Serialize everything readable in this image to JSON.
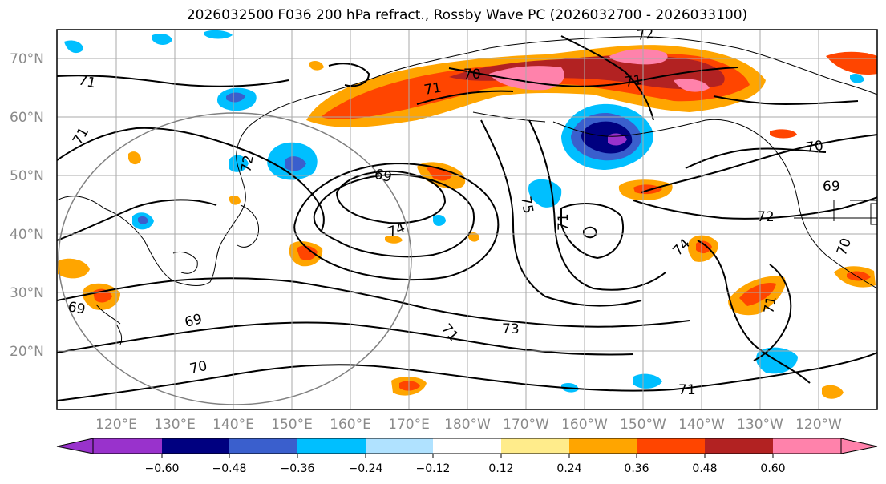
{
  "title": "2026032500 F036 200 hPa refract., Rossby Wave PC (2026032700 - 2026033100)",
  "map": {
    "lat_labels": [
      {
        "text": "70°N",
        "lat": 70
      },
      {
        "text": "60°N",
        "lat": 60
      },
      {
        "text": "50°N",
        "lat": 50
      },
      {
        "text": "40°N",
        "lat": 40
      },
      {
        "text": "30°N",
        "lat": 30
      },
      {
        "text": "20°N",
        "lat": 20
      }
    ],
    "lon_labels": [
      "120°E",
      "130°E",
      "140°E",
      "150°E",
      "160°E",
      "170°E",
      "180°W",
      "170°W",
      "160°W",
      "150°W",
      "140°W",
      "130°W",
      "120°W"
    ],
    "contour_labels": [
      "72",
      "70",
      "71",
      "71",
      "71",
      "71",
      "69",
      "72",
      "69",
      "70",
      "72",
      "71",
      "74",
      "75",
      "74",
      "73",
      "71",
      "69",
      "69",
      "70",
      "71",
      "70",
      "71"
    ],
    "colors": {
      "contour": "#000000",
      "grid": "#aaaaaa",
      "circle": "#808080"
    }
  },
  "colorbar": {
    "labels": [
      "−0.60",
      "−0.48",
      "−0.36",
      "−0.24",
      "−0.12",
      "0.12",
      "0.24",
      "0.36",
      "0.48",
      "0.60"
    ],
    "colors": [
      "#9932cc",
      "#000080",
      "#3a5fcd",
      "#00bfff",
      "#b0e2ff",
      "#ffffff",
      "#ffec8b",
      "#ffa500",
      "#ff4500",
      "#b22222",
      "#ff82ab"
    ]
  }
}
